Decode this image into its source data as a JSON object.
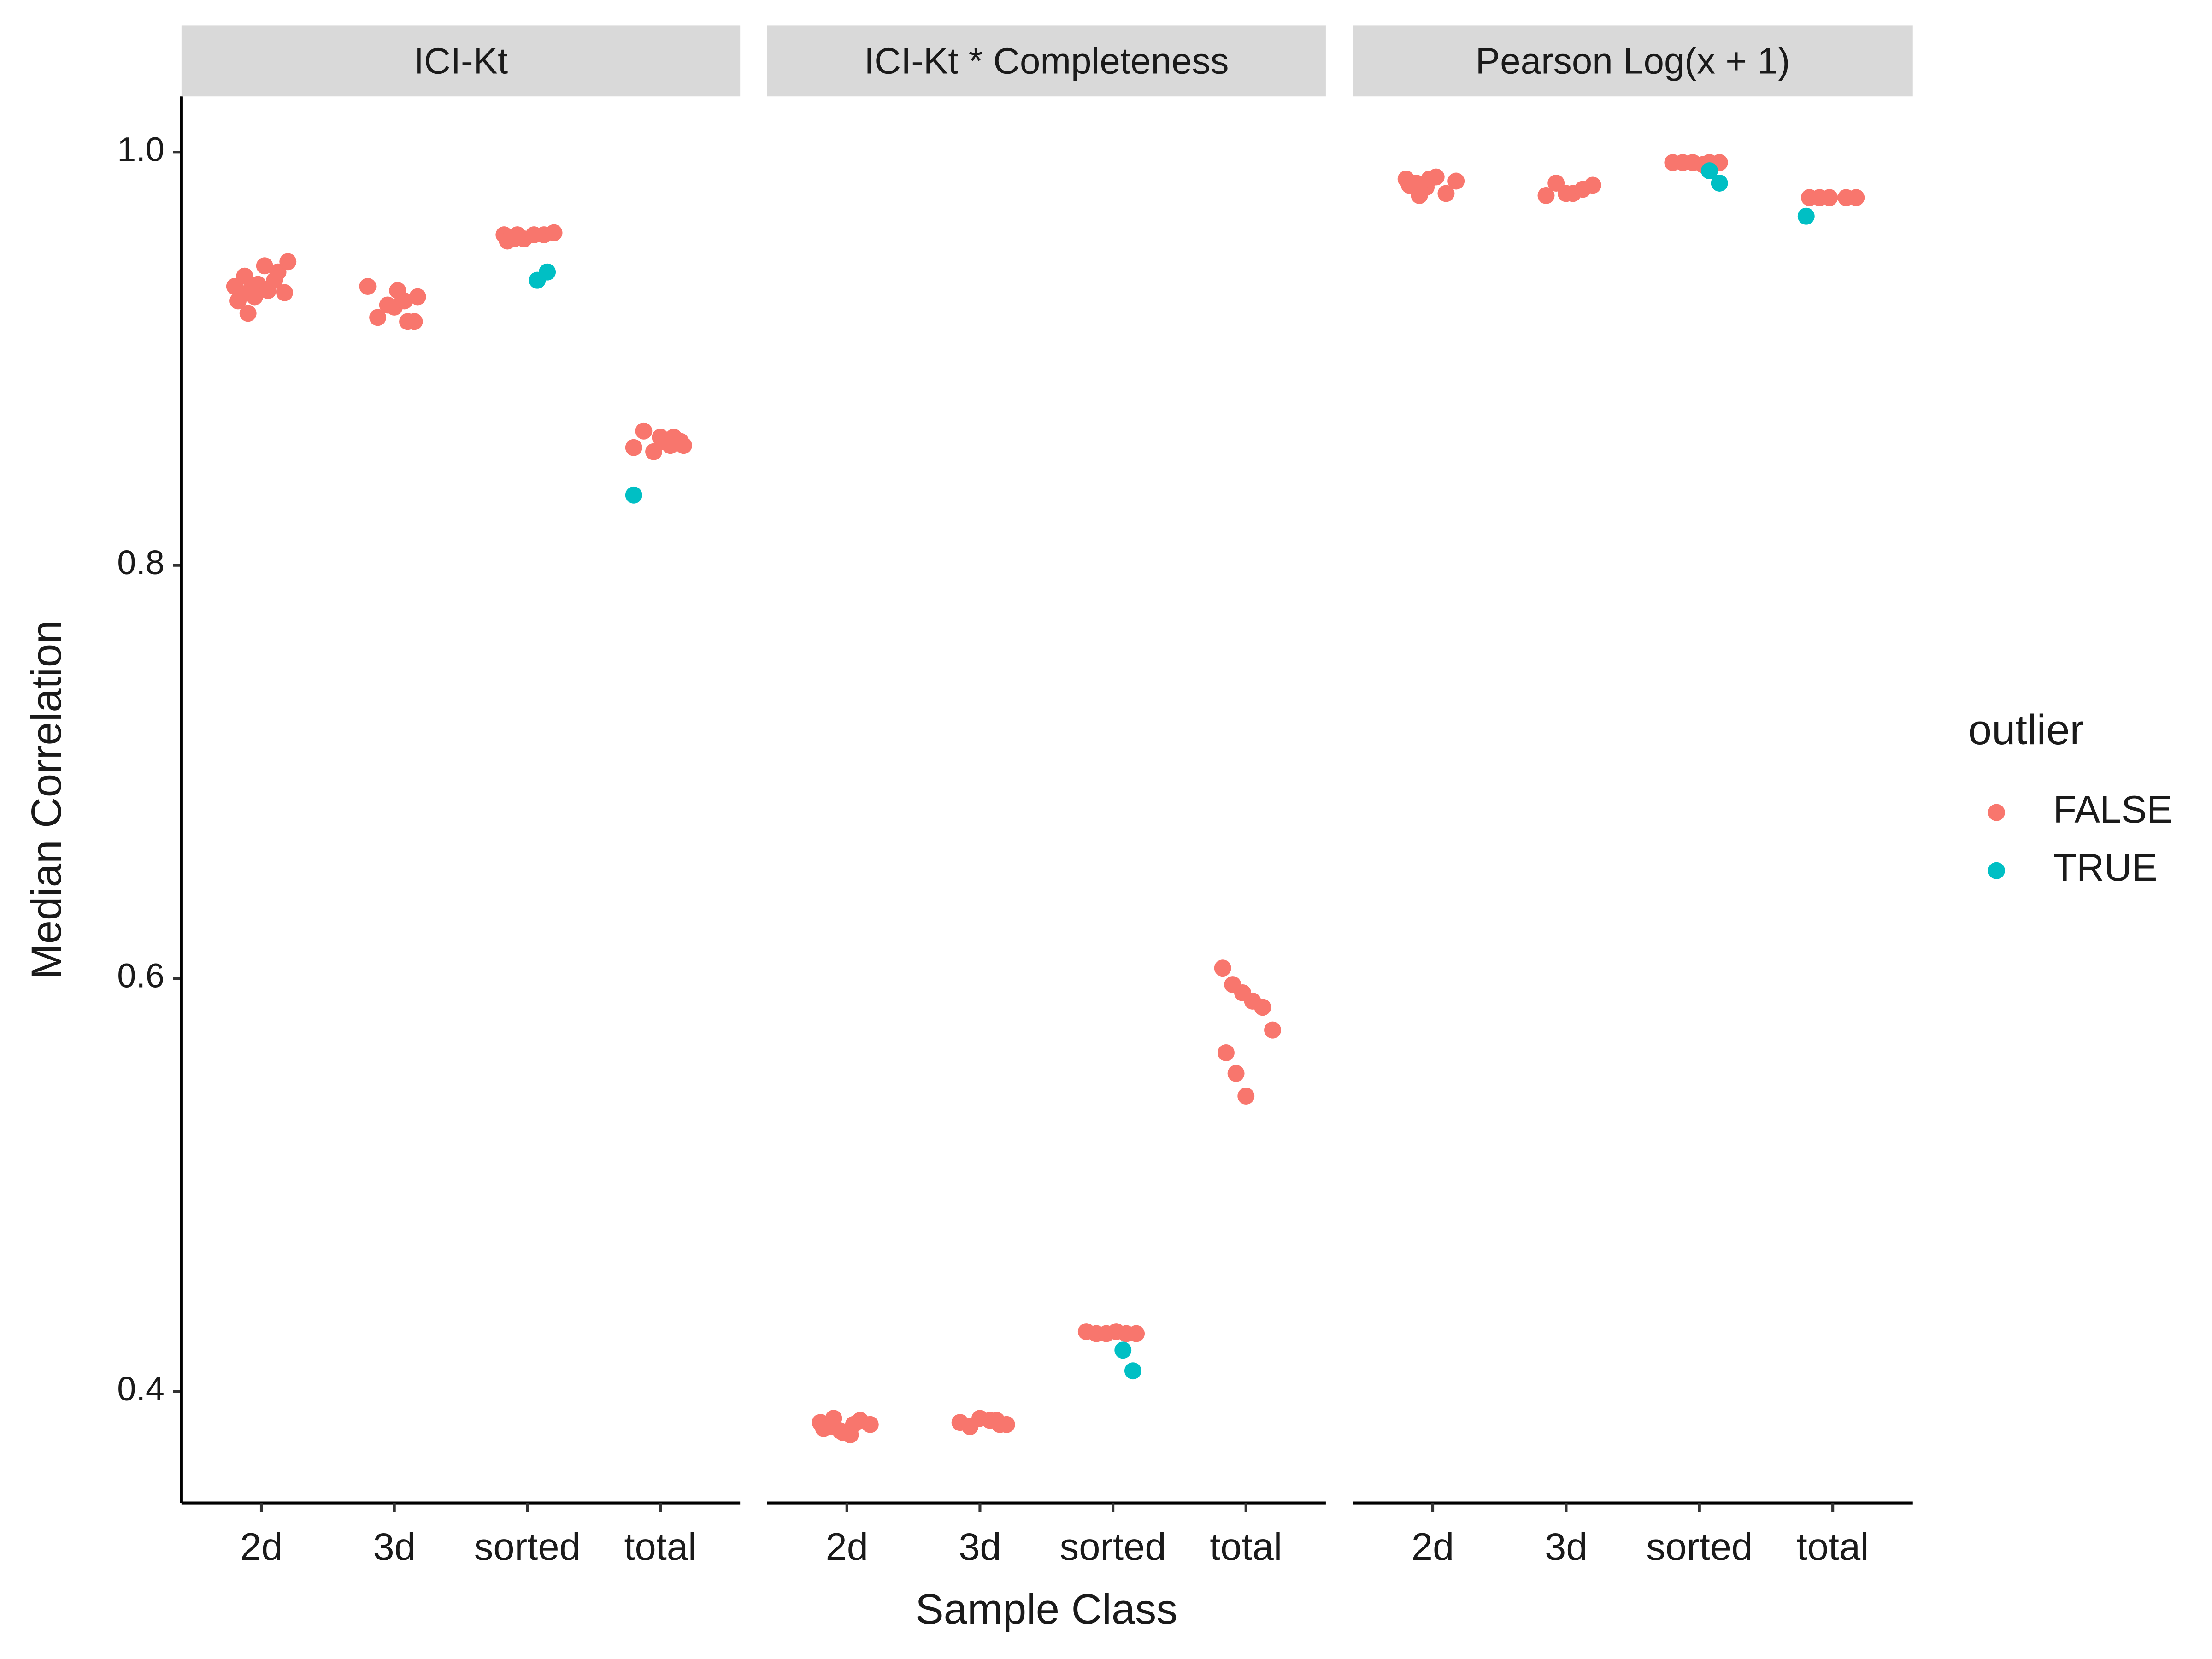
{
  "chart_data": {
    "type": "scatter",
    "x_label": "Sample Class",
    "y_label": "Median Correlation",
    "legend_title": "outlier",
    "legend_position": "right",
    "categories": [
      "2d",
      "3d",
      "sorted",
      "total"
    ],
    "ylim": [
      0.346,
      1.027
    ],
    "yticks": [
      0.4,
      0.6,
      0.8,
      {
        "value": 1.0,
        "label": "1.0"
      }
    ],
    "facets": [
      {
        "title": "ICI-Kt",
        "series": [
          {
            "name": "FALSE",
            "color": "#F8766D",
            "x": [
              "2d",
              "2d",
              "2d",
              "2d",
              "2d",
              "2d",
              "2d",
              "2d",
              "2d",
              "2d",
              "2d",
              "2d",
              "2d",
              "2d",
              "3d",
              "3d",
              "3d",
              "3d",
              "3d",
              "3d",
              "3d",
              "3d",
              "3d",
              "sorted",
              "sorted",
              "sorted",
              "sorted",
              "sorted",
              "sorted",
              "sorted",
              "sorted",
              "total",
              "total",
              "total",
              "total",
              "total",
              "total",
              "total",
              "total",
              "total"
            ],
            "values": [
              0.935,
              0.94,
              0.93,
              0.945,
              0.938,
              0.932,
              0.928,
              0.922,
              0.936,
              0.933,
              0.942,
              0.947,
              0.931,
              0.934,
              0.925,
              0.928,
              0.918,
              0.935,
              0.92,
              0.926,
              0.933,
              0.918,
              0.93,
              0.96,
              0.958,
              0.958,
              0.96,
              0.96,
              0.961,
              0.957,
              0.96,
              0.862,
              0.858,
              0.86,
              0.857,
              0.865,
              0.855,
              0.86,
              0.862,
              0.858
            ]
          },
          {
            "name": "TRUE",
            "color": "#00BFC4",
            "x": [
              "sorted",
              "sorted",
              "total"
            ],
            "values": [
              0.938,
              0.942,
              0.834
            ]
          }
        ]
      },
      {
        "title": "ICI-Kt * Completeness",
        "series": [
          {
            "name": "FALSE",
            "color": "#F8766D",
            "x": [
              "2d",
              "2d",
              "2d",
              "2d",
              "2d",
              "2d",
              "2d",
              "2d",
              "2d",
              "2d",
              "3d",
              "3d",
              "3d",
              "3d",
              "3d",
              "3d",
              "3d",
              "sorted",
              "sorted",
              "sorted",
              "sorted",
              "sorted",
              "sorted",
              "total",
              "total",
              "total",
              "total",
              "total",
              "total",
              "total",
              "total",
              "total"
            ],
            "values": [
              0.385,
              0.383,
              0.381,
              0.379,
              0.386,
              0.384,
              0.382,
              0.387,
              0.38,
              0.384,
              0.386,
              0.384,
              0.385,
              0.383,
              0.387,
              0.386,
              0.384,
              0.429,
              0.428,
              0.428,
              0.429,
              0.428,
              0.428,
              0.605,
              0.597,
              0.593,
              0.589,
              0.586,
              0.575,
              0.564,
              0.554,
              0.543
            ]
          },
          {
            "name": "TRUE",
            "color": "#00BFC4",
            "x": [
              "sorted",
              "sorted"
            ],
            "values": [
              0.42,
              0.41
            ]
          }
        ]
      },
      {
        "title": "Pearson Log(x + 1)",
        "series": [
          {
            "name": "FALSE",
            "color": "#F8766D",
            "x": [
              "2d",
              "2d",
              "2d",
              "2d",
              "2d",
              "2d",
              "2d",
              "2d",
              "2d",
              "3d",
              "3d",
              "3d",
              "3d",
              "3d",
              "3d",
              "sorted",
              "sorted",
              "sorted",
              "sorted",
              "sorted",
              "sorted",
              "total",
              "total",
              "total",
              "total",
              "total"
            ],
            "values": [
              0.987,
              0.985,
              0.983,
              0.988,
              0.98,
              0.986,
              0.984,
              0.979,
              0.987,
              0.98,
              0.982,
              0.984,
              0.979,
              0.985,
              0.98,
              0.995,
              0.995,
              0.995,
              0.995,
              0.995,
              0.994,
              0.978,
              0.978,
              0.978,
              0.978,
              0.978
            ]
          },
          {
            "name": "TRUE",
            "color": "#00BFC4",
            "x": [
              "sorted",
              "sorted",
              "total"
            ],
            "values": [
              0.991,
              0.985,
              0.969
            ]
          }
        ]
      }
    ]
  }
}
